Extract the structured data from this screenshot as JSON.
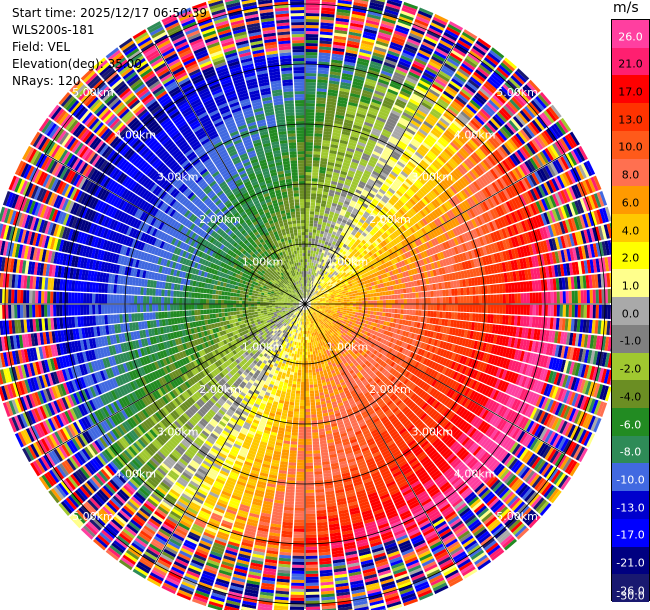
{
  "info": {
    "start_time": "Start time: 2025/12/17 06:50:39",
    "station": "WLS200s-181",
    "field": "Field: VEL",
    "elevation": "Elevation(deg): 35.00",
    "nrays": "NRays: 120"
  },
  "colorbar": {
    "title": "m/s",
    "ticks": [
      "26.0",
      "21.0",
      "17.0",
      "13.0",
      "10.0",
      "8.0",
      "6.0",
      "4.0",
      "2.0",
      "1.0",
      "0.0",
      "-1.0",
      "-2.0",
      "-4.0",
      "-6.0",
      "-8.0",
      "-10.0",
      "-13.0",
      "-17.0",
      "-21.0",
      "-26.0",
      "-30.0"
    ],
    "colors": [
      "#ff3fa0",
      "#ff1f70",
      "#ff0000",
      "#ff3300",
      "#ff5a1a",
      "#ff7050",
      "#ff9a00",
      "#ffc800",
      "#ffff00",
      "#ffff8c",
      "#a9a9a9",
      "#808080",
      "#a0c830",
      "#6b8e23",
      "#228b22",
      "#2e8b57",
      "#4169e1",
      "#0000cd",
      "#0000ff",
      "#000080",
      "#191970"
    ]
  },
  "chart_data": {
    "type": "ppi",
    "field": "VEL",
    "units": "m/s",
    "n_rays": 120,
    "elevation_deg": 35.0,
    "range_rings_km": [
      1.0,
      2.0,
      3.0,
      4.0,
      5.0
    ],
    "ring_labels": [
      "1.00km",
      "2.00km",
      "3.00km",
      "4.00km",
      "5.00km"
    ],
    "max_range_km": 5.3,
    "clim": [
      -30.0,
      26.0
    ]
  }
}
